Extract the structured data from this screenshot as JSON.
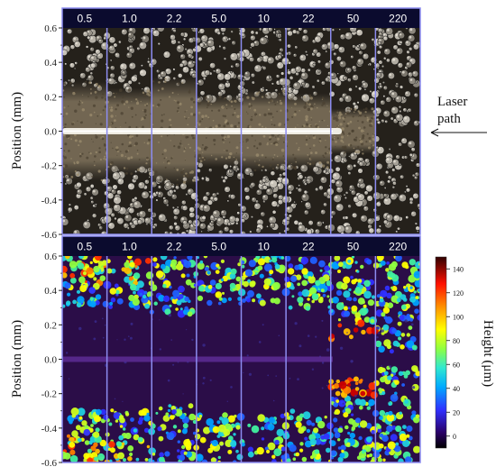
{
  "chart_data": [
    {
      "type": "image",
      "panel": "optical",
      "column_labels": [
        "0.5",
        "1.0",
        "2.2",
        "5.0",
        "10",
        "22",
        "50",
        "220"
      ],
      "ylabel": "Position (mm)",
      "yticks": [
        0.6,
        0.4,
        0.2,
        0.0,
        -0.2,
        -0.4,
        -0.6
      ],
      "ytick_labels": [
        "0.6",
        "0.4",
        "0.2",
        "0.0",
        "-0.2",
        "-0.4",
        "-0.6"
      ],
      "ylim": [
        -0.6,
        0.6
      ],
      "annotation": {
        "line1": "Laser",
        "line2": "path"
      },
      "colors": {
        "header": "#0b0b2e",
        "divider": "#8c8cf0",
        "background": "#2a2620"
      }
    },
    {
      "type": "heatmap",
      "panel": "height-map",
      "column_labels": [
        "0.5",
        "1.0",
        "2.2",
        "5.0",
        "10",
        "22",
        "50",
        "220"
      ],
      "ylabel": "Position (mm)",
      "yticks": [
        0.6,
        0.4,
        0.2,
        0.0,
        -0.2,
        -0.4,
        -0.6
      ],
      "ytick_labels": [
        "0.6",
        "0.4",
        "0.2",
        "0.0",
        "-0.2",
        "-0.4",
        "-0.6"
      ],
      "ylim": [
        -0.6,
        0.6
      ],
      "colorbar": {
        "label": "Height (μm)",
        "ticks": [
          140,
          120,
          100,
          80,
          60,
          40,
          20,
          0
        ],
        "tick_labels": [
          "140",
          "120",
          "100",
          "80",
          "60",
          "40",
          "20",
          "0"
        ],
        "range": [
          -10,
          150
        ]
      },
      "colors": {
        "header": "#0b0b2e",
        "divider": "#8c8cf0",
        "background": "#2a0d45"
      }
    }
  ]
}
